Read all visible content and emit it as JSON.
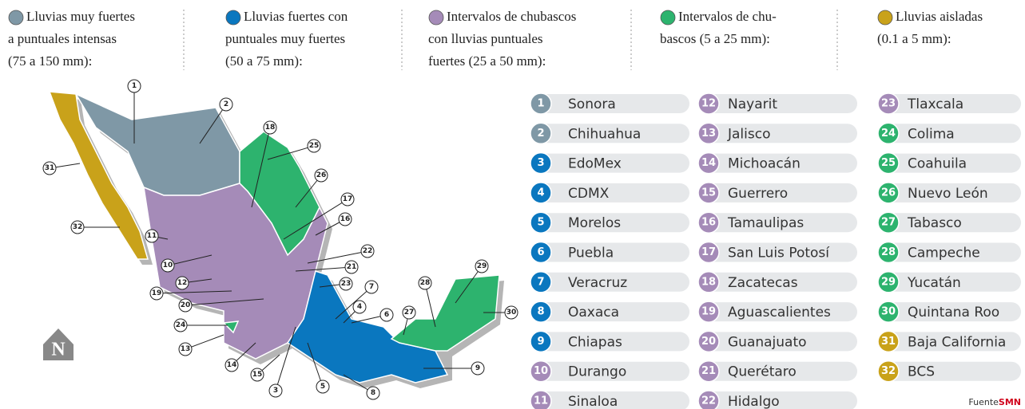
{
  "legend": [
    {
      "color": "#7f98a6",
      "lines": [
        "Lluvias muy fuertes",
        "a puntuales intensas",
        "(75 a 150 mm):"
      ]
    },
    {
      "color": "#0a77bf",
      "lines": [
        "Lluvias fuertes con",
        "puntuales muy fuertes",
        "(50 a 75 mm):"
      ]
    },
    {
      "color": "#a58bb8",
      "lines": [
        "Intervalos de chubascos",
        "con lluvias puntuales",
        "fuertes (25 a 50 mm):"
      ]
    },
    {
      "color": "#2db36e",
      "lines": [
        "Intervalos de chu-",
        "bascos (5 a 25 mm):"
      ]
    },
    {
      "color": "#c9a21a",
      "lines": [
        "Lluvias aisladas",
        "(0.1 a 5 mm):"
      ]
    }
  ],
  "states": [
    {
      "number": "1",
      "name": "Sonora",
      "color": "#7f98a6"
    },
    {
      "number": "2",
      "name": "Chihuahua",
      "color": "#7f98a6"
    },
    {
      "number": "3",
      "name": "EdoMex",
      "color": "#0a77bf"
    },
    {
      "number": "4",
      "name": "CDMX",
      "color": "#0a77bf"
    },
    {
      "number": "5",
      "name": "Morelos",
      "color": "#0a77bf"
    },
    {
      "number": "6",
      "name": "Puebla",
      "color": "#0a77bf"
    },
    {
      "number": "7",
      "name": "Veracruz",
      "color": "#0a77bf"
    },
    {
      "number": "8",
      "name": "Oaxaca",
      "color": "#0a77bf"
    },
    {
      "number": "9",
      "name": "Chiapas",
      "color": "#0a77bf"
    },
    {
      "number": "10",
      "name": "Durango",
      "color": "#a58bb8"
    },
    {
      "number": "11",
      "name": "Sinaloa",
      "color": "#a58bb8"
    },
    {
      "number": "12",
      "name": "Nayarit",
      "color": "#a58bb8"
    },
    {
      "number": "13",
      "name": "Jalisco",
      "color": "#a58bb8"
    },
    {
      "number": "14",
      "name": "Michoacán",
      "color": "#a58bb8"
    },
    {
      "number": "15",
      "name": "Guerrero",
      "color": "#a58bb8"
    },
    {
      "number": "16",
      "name": "Tamaulipas",
      "color": "#a58bb8"
    },
    {
      "number": "17",
      "name": "San Luis Potosí",
      "color": "#a58bb8"
    },
    {
      "number": "18",
      "name": "Zacatecas",
      "color": "#a58bb8"
    },
    {
      "number": "19",
      "name": "Aguascalientes",
      "color": "#a58bb8"
    },
    {
      "number": "20",
      "name": "Guanajuato",
      "color": "#a58bb8"
    },
    {
      "number": "21",
      "name": "Querétaro",
      "color": "#a58bb8"
    },
    {
      "number": "22",
      "name": "Hidalgo",
      "color": "#a58bb8"
    },
    {
      "number": "23",
      "name": "Tlaxcala",
      "color": "#a58bb8"
    },
    {
      "number": "24",
      "name": "Colima",
      "color": "#2db36e"
    },
    {
      "number": "25",
      "name": "Coahuila",
      "color": "#2db36e"
    },
    {
      "number": "26",
      "name": "Nuevo León",
      "color": "#2db36e"
    },
    {
      "number": "27",
      "name": "Tabasco",
      "color": "#2db36e"
    },
    {
      "number": "28",
      "name": "Campeche",
      "color": "#2db36e"
    },
    {
      "number": "29",
      "name": "Yucatán",
      "color": "#2db36e"
    },
    {
      "number": "30",
      "name": "Quintana Roo",
      "color": "#2db36e"
    },
    {
      "number": "31",
      "name": "Baja California",
      "color": "#c9a21a"
    },
    {
      "number": "32",
      "name": "BCS",
      "color": "#c9a21a"
    }
  ],
  "north": "N",
  "source": {
    "label": "Fuente",
    "name": "SMN"
  }
}
